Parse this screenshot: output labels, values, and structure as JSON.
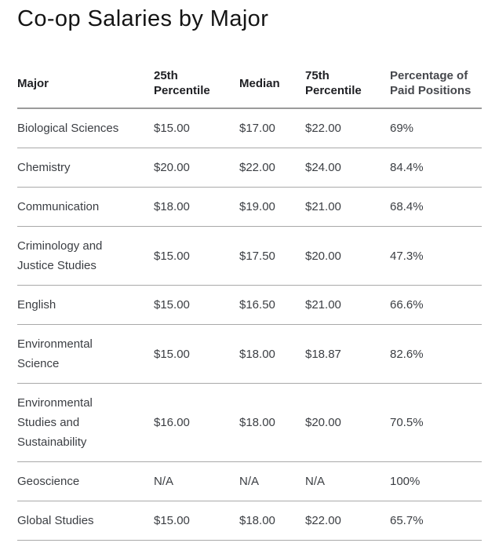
{
  "page_title": "Co-op Salaries by Major",
  "table": {
    "headers": [
      "Major",
      "25th Percentile",
      "Median",
      "75th Percentile",
      "Percentage of Paid Positions"
    ],
    "rows": [
      [
        "Biological Sciences",
        "$15.00",
        "$17.00",
        "$22.00",
        "69%"
      ],
      [
        "Chemistry",
        "$20.00",
        "$22.00",
        "$24.00",
        "84.4%"
      ],
      [
        "Communication",
        "$18.00",
        "$19.00",
        "$21.00",
        "68.4%"
      ],
      [
        "Criminology and\nJustice Studies",
        "$15.00",
        "$17.50",
        "$20.00",
        "47.3%"
      ],
      [
        "English",
        "$15.00",
        "$16.50",
        "$21.00",
        "66.6%"
      ],
      [
        "Environmental\nScience",
        "$15.00",
        "$18.00",
        "$18.87",
        "82.6%"
      ],
      [
        "Environmental\nStudies and\nSustainability",
        "$16.00",
        "$18.00",
        "$20.00",
        "70.5%"
      ],
      [
        "Geoscience",
        "N/A",
        "N/A",
        "N/A",
        "100%"
      ],
      [
        "Global Studies",
        "$15.00",
        "$18.00",
        "$22.00",
        "65.7%"
      ]
    ]
  },
  "chart_data": {
    "type": "table",
    "title": "Co-op Salaries by Major",
    "columns": [
      "Major",
      "25th Percentile",
      "Median",
      "75th Percentile",
      "Percentage of Paid Positions"
    ],
    "rows": [
      {
        "major": "Biological Sciences",
        "p25": "$15.00",
        "median": "$17.00",
        "p75": "$22.00",
        "paid_pct": "69%"
      },
      {
        "major": "Chemistry",
        "p25": "$20.00",
        "median": "$22.00",
        "p75": "$24.00",
        "paid_pct": "84.4%"
      },
      {
        "major": "Communication",
        "p25": "$18.00",
        "median": "$19.00",
        "p75": "$21.00",
        "paid_pct": "68.4%"
      },
      {
        "major": "Criminology and Justice Studies",
        "p25": "$15.00",
        "median": "$17.50",
        "p75": "$20.00",
        "paid_pct": "47.3%"
      },
      {
        "major": "English",
        "p25": "$15.00",
        "median": "$16.50",
        "p75": "$21.00",
        "paid_pct": "66.6%"
      },
      {
        "major": "Environmental Science",
        "p25": "$15.00",
        "median": "$18.00",
        "p75": "$18.87",
        "paid_pct": "82.6%"
      },
      {
        "major": "Environmental Studies and Sustainability",
        "p25": "$16.00",
        "median": "$18.00",
        "p75": "$20.00",
        "paid_pct": "70.5%"
      },
      {
        "major": "Geoscience",
        "p25": "N/A",
        "median": "N/A",
        "p75": "N/A",
        "paid_pct": "100%"
      },
      {
        "major": "Global Studies",
        "p25": "$15.00",
        "median": "$18.00",
        "p75": "$22.00",
        "paid_pct": "65.7%"
      }
    ]
  },
  "colors": {
    "background": "#ffffff",
    "title_text": "#141414",
    "header_text": "#1e1f23",
    "header_muted_text": "#46484d",
    "body_text": "#3b3e43",
    "header_divider": "#9b9b9b",
    "row_divider": "#a9a9a9"
  }
}
